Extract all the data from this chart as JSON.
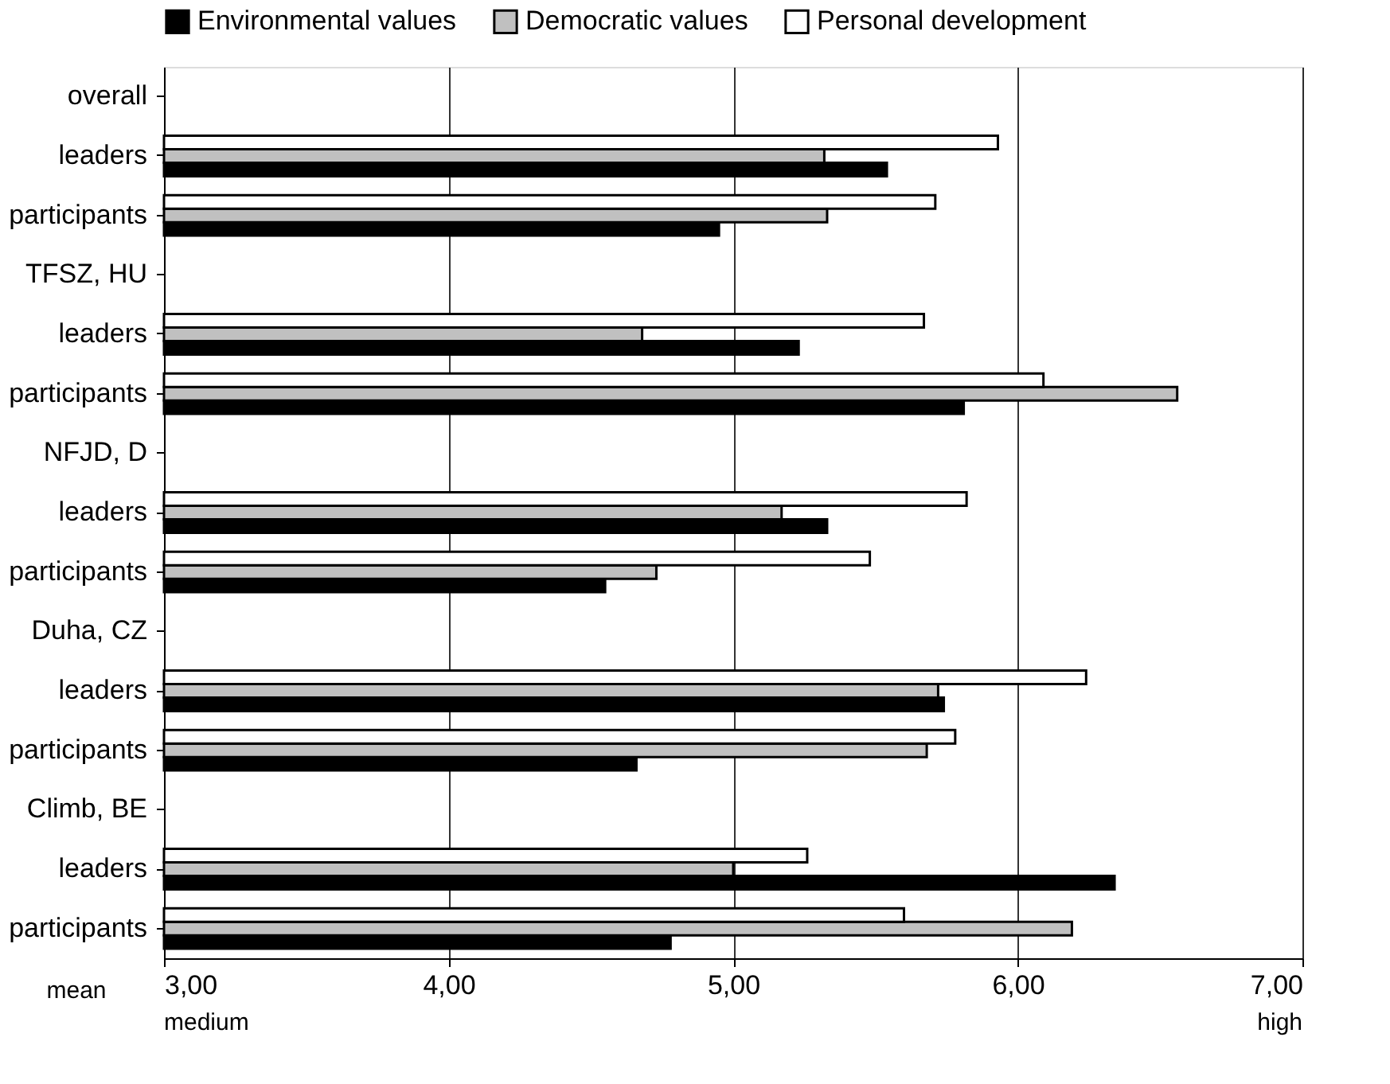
{
  "chart_data": {
    "type": "bar",
    "orientation": "horizontal",
    "categories": [
      "overall",
      "leaders",
      "participants",
      "TFSZ, HU",
      "leaders",
      "participants",
      "NFJD, D",
      "leaders",
      "participants",
      "Duha, CZ",
      "leaders",
      "participants",
      "Climb, BE",
      "leaders",
      "participants"
    ],
    "series": [
      {
        "name": "Environmental values",
        "color": "#000000",
        "values": [
          null,
          5.54,
          4.95,
          null,
          5.23,
          5.81,
          null,
          5.33,
          4.55,
          null,
          5.74,
          4.66,
          null,
          6.34,
          4.78
        ]
      },
      {
        "name": "Democratic values",
        "color": "#c0c0c0",
        "values": [
          null,
          5.32,
          5.33,
          null,
          4.68,
          6.56,
          null,
          5.17,
          4.73,
          null,
          5.72,
          5.68,
          null,
          5.0,
          6.19
        ]
      },
      {
        "name": "Personal development",
        "color": "#ffffff",
        "values": [
          null,
          5.93,
          5.71,
          null,
          5.67,
          6.09,
          null,
          5.82,
          5.48,
          null,
          6.24,
          5.78,
          null,
          5.26,
          5.6
        ]
      }
    ],
    "xlim": [
      3,
      7
    ],
    "xticks": [
      {
        "value": 3,
        "label": "3,00"
      },
      {
        "value": 4,
        "label": "4,00"
      },
      {
        "value": 5,
        "label": "5,00"
      },
      {
        "value": 6,
        "label": "6,00"
      },
      {
        "value": 7,
        "label": "7,00"
      }
    ],
    "grid": "x",
    "legend": "top",
    "annotations": [
      "mean",
      "medium",
      "high"
    ]
  }
}
